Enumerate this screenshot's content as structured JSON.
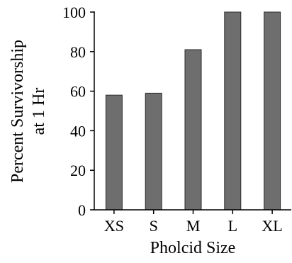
{
  "chart_data": {
    "type": "bar",
    "categories": [
      "XS",
      "S",
      "M",
      "L",
      "XL"
    ],
    "values": [
      58,
      59,
      81,
      100,
      100
    ],
    "ylim": [
      0,
      100
    ],
    "yticks": [
      0,
      20,
      40,
      60,
      80,
      100
    ],
    "xlabel": "Pholcid Size",
    "ylabel_line1": "Percent Survivorship",
    "ylabel_line2": "at 1 Hr",
    "grid": false,
    "legend": "none",
    "bar_color": "#6e6e6e",
    "bar_edge_color": "#2a2a2a",
    "axis_color": "#000000"
  }
}
